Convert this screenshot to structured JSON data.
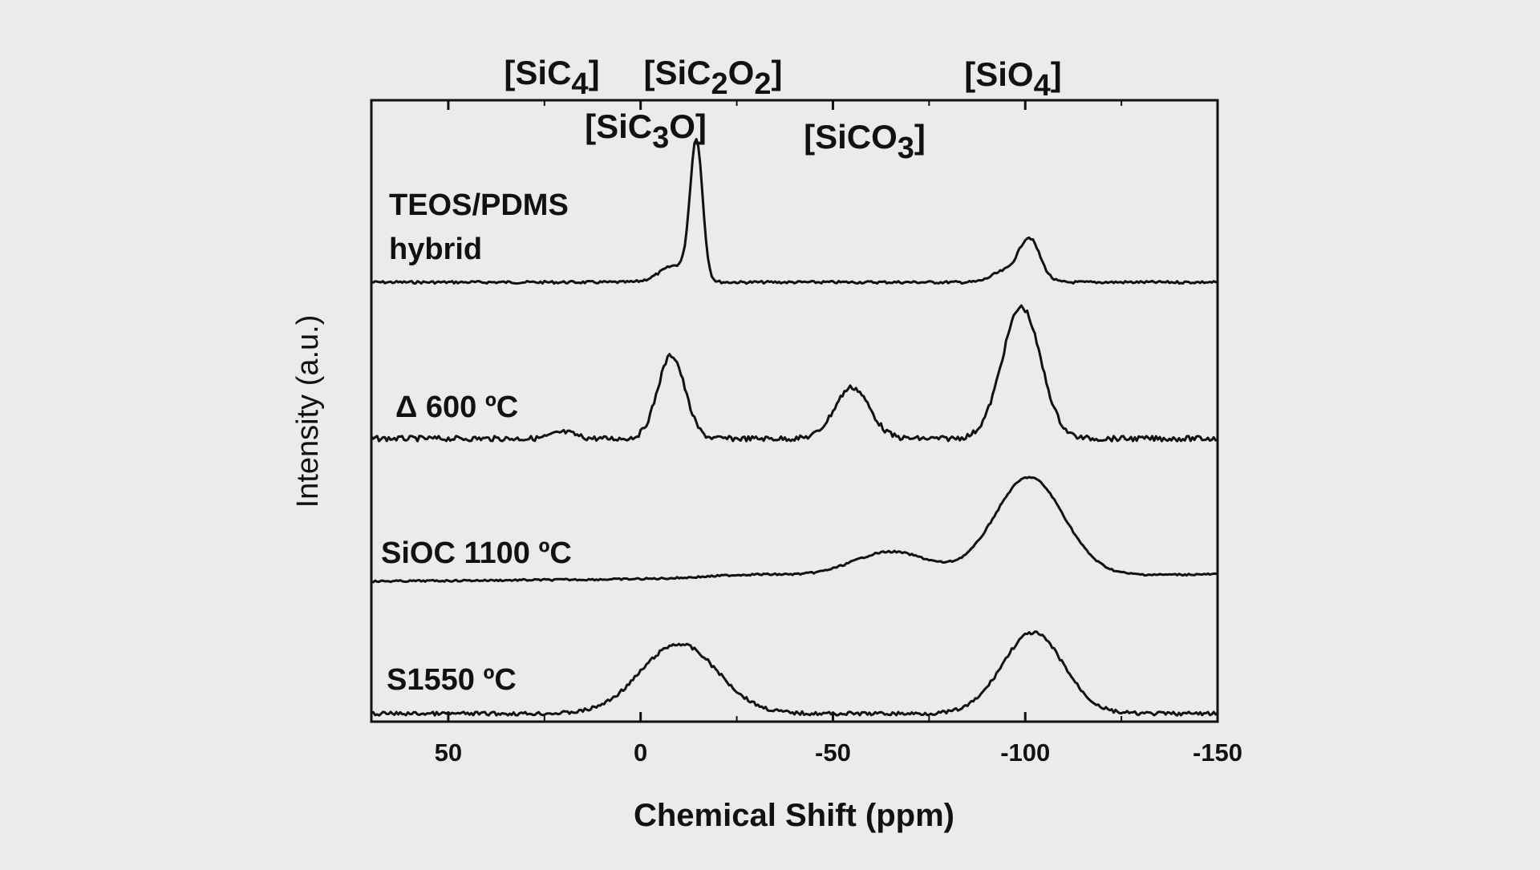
{
  "chart_data": {
    "type": "line",
    "xlabel": "Chemical Shift (ppm)",
    "ylabel": "Intensity (a.u.)",
    "xlim": [
      70,
      -150
    ],
    "x_reversed": true,
    "x_ticks": [
      50,
      0,
      -50,
      -100,
      -150
    ],
    "x_tick_labels": [
      "50",
      "0",
      "-50",
      "-100",
      "-150"
    ],
    "y_ticks_shown": false,
    "grid": false,
    "legend": "none",
    "line_color": "#111111",
    "top_annotations": [
      {
        "prefix": "[SiC",
        "sub": "4",
        "suffix": "]",
        "ppm": 15
      },
      {
        "prefix": "[SiC",
        "sub": "2",
        "suffix": "O",
        "sub2": "2",
        "suffix2": "]",
        "ppm": -20
      },
      {
        "prefix": "[SiC",
        "sub": "3",
        "suffix": "O]",
        "ppm": -2
      },
      {
        "prefix": "[SiCO",
        "sub": "3",
        "suffix": "]",
        "ppm": -58
      },
      {
        "prefix": "[SiO",
        "sub": "4",
        "suffix": "]",
        "ppm": -96
      }
    ],
    "series": [
      {
        "label_lines": [
          "TEOS/PDMS",
          "hybrid"
        ],
        "baseline": 0.0,
        "peaks": [
          {
            "center": -14.5,
            "height": 1.0,
            "width": 1.6
          },
          {
            "center": -9,
            "height": 0.12,
            "width": 4
          },
          {
            "center": -101,
            "height": 0.32,
            "width": 2.8
          },
          {
            "center": -94,
            "height": 0.07,
            "width": 3
          }
        ]
      },
      {
        "label_lines": [
          "Δ 600 ºC"
        ],
        "baseline": 0.0,
        "peaks": [
          {
            "center": -8,
            "height": 0.52,
            "width": 3.5
          },
          {
            "center": -55,
            "height": 0.32,
            "width": 4.5
          },
          {
            "center": -99,
            "height": 0.82,
            "width": 5
          },
          {
            "center": 20,
            "height": 0.04,
            "width": 3
          }
        ]
      },
      {
        "label_lines": [
          "SiOC 1100 ºC"
        ],
        "baseline": 0.0,
        "peaks": [
          {
            "center": -65,
            "height": 0.21,
            "width": 10
          },
          {
            "center": -101,
            "height": 0.82,
            "width": 9
          },
          {
            "center": -30,
            "height": 0.03,
            "width": 12
          }
        ]
      },
      {
        "label_lines": [
          "S1550 ºC"
        ],
        "baseline": 0.0,
        "peaks": [
          {
            "center": -10,
            "height": 0.62,
            "width": 10
          },
          {
            "center": -102,
            "height": 0.72,
            "width": 8
          }
        ]
      }
    ]
  }
}
